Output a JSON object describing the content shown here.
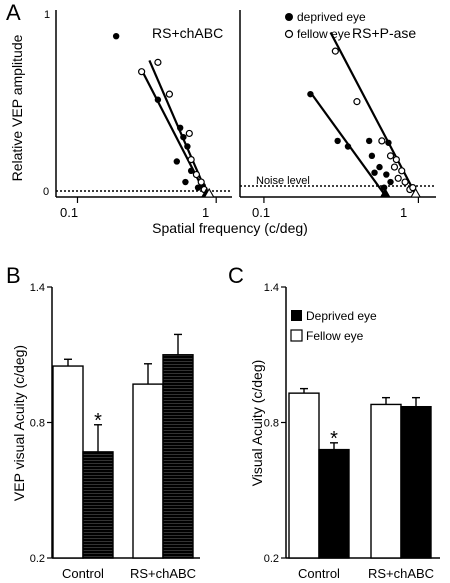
{
  "panels": {
    "A": {
      "letter": "A"
    },
    "B": {
      "letter": "B"
    },
    "C": {
      "letter": "C"
    }
  },
  "chart_data": [
    {
      "panel": "A",
      "type": "scatter",
      "ylabel": "Relative VEP amplitude",
      "xlabel": "Spatial frequency (c/deg)",
      "xscale": "log",
      "xlim": [
        0.07,
        1.3
      ],
      "ylim": [
        0,
        1
      ],
      "grid": false,
      "yticks": [
        "0",
        "1"
      ],
      "legend_position": "top",
      "legend": [
        {
          "marker": "filled-circle",
          "label": "deprived eye"
        },
        {
          "marker": "open-circle",
          "label": "fellow eye"
        }
      ],
      "noise_level_y": 0.03,
      "noise_label": "Noise level",
      "subplots": [
        {
          "title": "RS+chABC",
          "xticks": [
            "0.1",
            "1"
          ],
          "series": [
            {
              "name": "deprived eye",
              "marker": "filled",
              "points": [
                [
                  0.19,
                  0.86
                ],
                [
                  0.38,
                  0.52
                ],
                [
                  0.55,
                  0.37
                ],
                [
                  0.58,
                  0.32
                ],
                [
                  0.62,
                  0.27
                ],
                [
                  0.52,
                  0.19
                ],
                [
                  0.66,
                  0.14
                ],
                [
                  0.6,
                  0.08
                ],
                [
                  0.74,
                  0.05
                ],
                [
                  0.8,
                  0.06
                ]
              ],
              "fit": [
                [
                  0.29,
                  0.68
                ],
                [
                  0.86,
                  0
                ]
              ]
            },
            {
              "name": "fellow eye",
              "marker": "open",
              "points": [
                [
                  0.29,
                  0.67
                ],
                [
                  0.38,
                  0.72
                ],
                [
                  0.46,
                  0.55
                ],
                [
                  0.64,
                  0.34
                ],
                [
                  0.66,
                  0.2
                ],
                [
                  0.72,
                  0.12
                ],
                [
                  0.78,
                  0.08
                ],
                [
                  0.82,
                  0.04
                ]
              ],
              "fit": [
                [
                  0.33,
                  0.73
                ],
                [
                  0.88,
                  0
                ]
              ]
            }
          ],
          "cutoff_markers": [
            {
              "series": "deprived eye",
              "x": 0.85
            },
            {
              "series": "fellow eye",
              "x": 0.89
            }
          ]
        },
        {
          "title": "RS+P-ase",
          "xticks": [
            "0.1",
            "1"
          ],
          "series": [
            {
              "name": "deprived eye",
              "marker": "filled",
              "points": [
                [
                  0.2,
                  0.55
                ],
                [
                  0.3,
                  0.3
                ],
                [
                  0.35,
                  0.27
                ],
                [
                  0.48,
                  0.3
                ],
                [
                  0.5,
                  0.22
                ],
                [
                  0.56,
                  0.16
                ],
                [
                  0.62,
                  0.12
                ],
                [
                  0.66,
                  0.08
                ],
                [
                  0.6,
                  0.05
                ],
                [
                  0.52,
                  0.13
                ],
                [
                  0.64,
                  0.29
                ]
              ],
              "fit": [
                [
                  0.2,
                  0.56
                ],
                [
                  0.62,
                  0
                ]
              ]
            },
            {
              "name": "fellow eye",
              "marker": "open",
              "points": [
                [
                  0.29,
                  0.78
                ],
                [
                  0.4,
                  0.51
                ],
                [
                  0.58,
                  0.3
                ],
                [
                  0.66,
                  0.22
                ],
                [
                  0.72,
                  0.2
                ],
                [
                  0.7,
                  0.16
                ],
                [
                  0.78,
                  0.14
                ],
                [
                  0.82,
                  0.08
                ],
                [
                  0.88,
                  0.04
                ],
                [
                  0.92,
                  0.05
                ],
                [
                  0.74,
                  0.1
                ]
              ],
              "fit": [
                [
                  0.27,
                  0.88
                ],
                [
                  0.98,
                  0
                ]
              ]
            }
          ],
          "cutoff_markers": [
            {
              "series": "deprived eye",
              "x": 0.61
            },
            {
              "series": "fellow eye",
              "x": 0.96
            }
          ]
        }
      ]
    },
    {
      "panel": "B",
      "type": "bar",
      "ylabel": "VEP visual Acuity (c/deg)",
      "xlabel": "",
      "ylim": [
        0.2,
        1.4
      ],
      "yticks": [
        "0.2",
        "0.8",
        "1.4"
      ],
      "categories": [
        "Control",
        "RS+chABC"
      ],
      "series": [
        {
          "name": "",
          "fill": "open",
          "values": [
            1.05,
            0.97
          ],
          "errors": [
            0.03,
            0.09
          ]
        },
        {
          "name": "",
          "fill": "hatched-black",
          "values": [
            0.67,
            1.1
          ],
          "errors": [
            0.12,
            0.09
          ]
        }
      ],
      "significance": [
        {
          "category": "Control",
          "series": 1,
          "label": "*"
        }
      ]
    },
    {
      "panel": "C",
      "type": "bar",
      "ylabel": "Visual Acuity (c/deg)",
      "xlabel": "",
      "ylim": [
        0.2,
        1.4
      ],
      "yticks": [
        "0.2",
        "0.8",
        "1.4"
      ],
      "categories": [
        "Control",
        "RS+chABC"
      ],
      "legend_position": "top",
      "legend": [
        {
          "fill": "black",
          "label": "Deprived eye"
        },
        {
          "fill": "open",
          "label": "Fellow eye"
        }
      ],
      "series": [
        {
          "name": "Fellow eye",
          "fill": "open",
          "values": [
            0.93,
            0.88
          ],
          "errors": [
            0.02,
            0.03
          ]
        },
        {
          "name": "Deprived eye",
          "fill": "black",
          "values": [
            0.68,
            0.87
          ],
          "errors": [
            0.03,
            0.04
          ]
        }
      ],
      "significance": [
        {
          "category": "Control",
          "series": 1,
          "label": "*"
        }
      ]
    }
  ]
}
